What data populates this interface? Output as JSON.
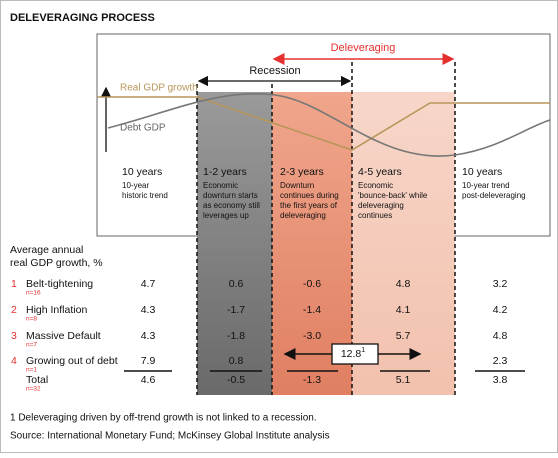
{
  "title": "DELEVERAGING PROCESS",
  "diagram": {
    "deleveraging": "Deleveraging",
    "recession": "Recession",
    "real_gdp": "Real GDP growth",
    "debt_gdp": "Debt GDP",
    "phases": [
      {
        "title": "10 years",
        "lines": [
          "10-year",
          "historic trend"
        ]
      },
      {
        "title": "1-2 years",
        "lines": [
          "Economic",
          "downturn starts",
          "as economy still",
          "leverages up"
        ]
      },
      {
        "title": "2-3 years",
        "lines": [
          "Downturn",
          "continues during",
          "the first years of",
          "deleveraging"
        ]
      },
      {
        "title": "4-5 years",
        "lines": [
          "Economic",
          "'bounce-back' while",
          "deleveraging",
          "continues"
        ]
      },
      {
        "title": "10 years",
        "lines": [
          "10-year trend",
          "post-deleveraging"
        ]
      }
    ]
  },
  "table": {
    "header": [
      "Average annual",
      "real GDP growth, %"
    ],
    "rows": [
      {
        "num": "1",
        "name": "Belt-tightening",
        "n": "n=16",
        "values": [
          "4.7",
          "0.6",
          "-0.6",
          "4.8",
          "3.2"
        ]
      },
      {
        "num": "2",
        "name": "High Inflation",
        "n": "n=8",
        "values": [
          "4.3",
          "-1.7",
          "-1.4",
          "4.1",
          "4.2"
        ]
      },
      {
        "num": "3",
        "name": "Massive Default",
        "n": "n=7",
        "values": [
          "4.3",
          "-1.8",
          "-3.0",
          "5.7",
          "4.8"
        ]
      },
      {
        "num": "4",
        "name": "Growing out of debt",
        "n": "n=1",
        "values": [
          "7.9",
          "0.8",
          "2.3"
        ],
        "span": {
          "value": "12.8",
          "note": "1"
        }
      }
    ],
    "total": {
      "name": "Total",
      "n": "n=32",
      "values": [
        "4.6",
        "-0.5",
        "-1.3",
        "5.1",
        "3.8"
      ]
    }
  },
  "footnote": "1 Deleveraging driven by off-trend growth is not linked to a recession.",
  "source": "Source: International Monetary Fund; McKinsey Global Institute analysis"
}
